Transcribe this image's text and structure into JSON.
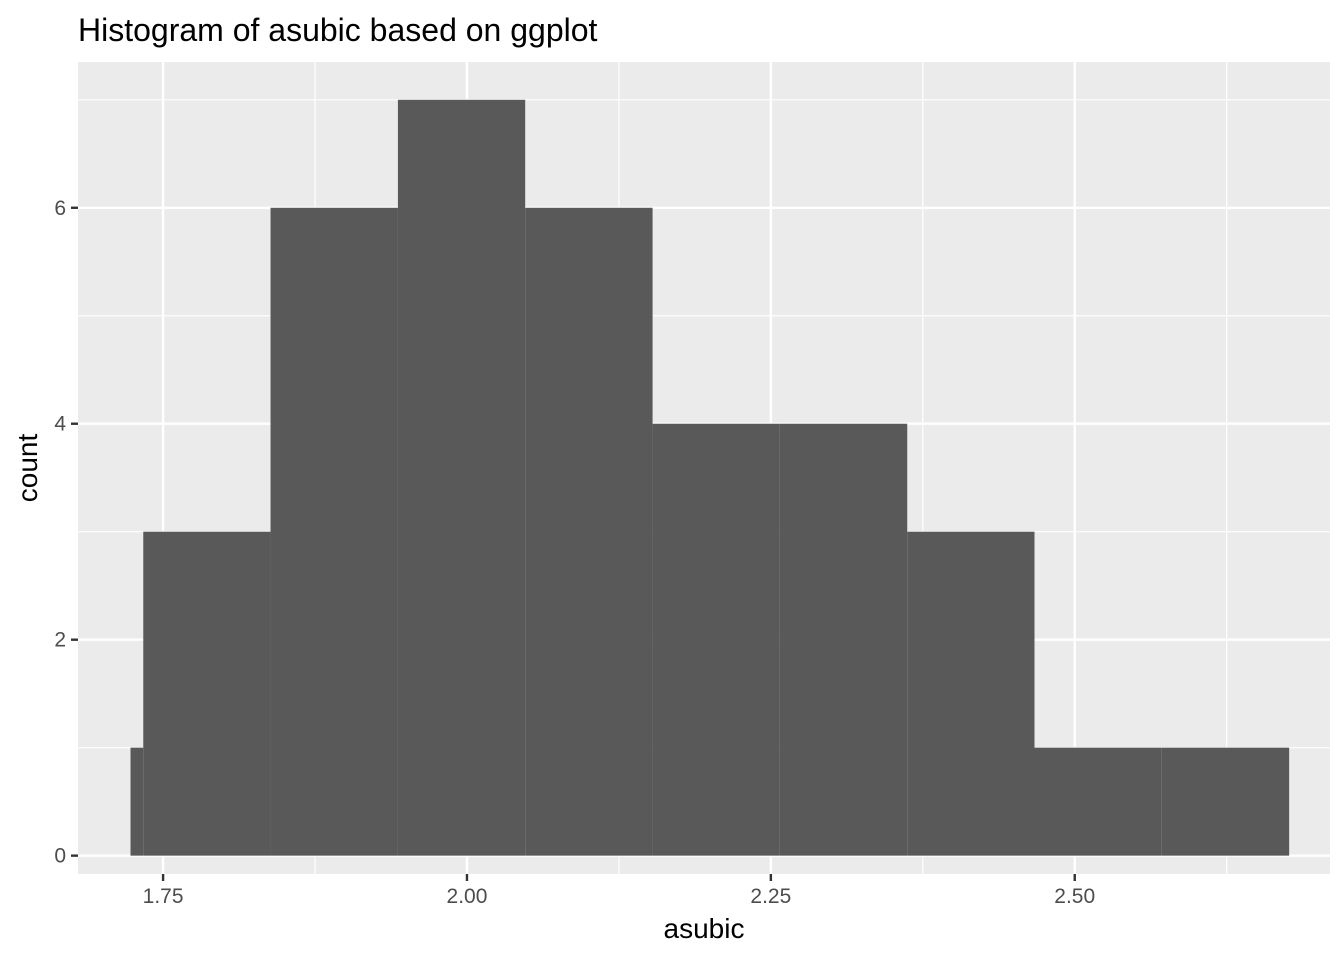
{
  "chart_data": {
    "type": "bar",
    "subtype": "histogram",
    "title": "Histogram of asubic based on ggplot",
    "xlabel": "asubic",
    "ylabel": "count",
    "xlim": [
      1.68,
      2.71
    ],
    "ylim": [
      -0.17,
      7.35
    ],
    "x_ticks": [
      1.75,
      2.0,
      2.25,
      2.5
    ],
    "x_tick_labels": [
      "1.75",
      "2.00",
      "2.25",
      "2.50"
    ],
    "y_ticks": [
      0,
      2,
      4,
      6
    ],
    "y_tick_labels": [
      "0",
      "2",
      "4",
      "6"
    ],
    "bins": [
      {
        "x0": 1.7232,
        "x1": 1.7337,
        "count": 1
      },
      {
        "x0": 1.7337,
        "x1": 1.8384,
        "count": 3
      },
      {
        "x0": 1.8384,
        "x1": 1.9432,
        "count": 6
      },
      {
        "x0": 1.9432,
        "x1": 2.0479,
        "count": 7
      },
      {
        "x0": 2.0479,
        "x1": 2.1527,
        "count": 6
      },
      {
        "x0": 2.1527,
        "x1": 2.2574,
        "count": 4
      },
      {
        "x0": 2.2574,
        "x1": 2.3622,
        "count": 4
      },
      {
        "x0": 2.3622,
        "x1": 2.4669,
        "count": 3
      },
      {
        "x0": 2.4669,
        "x1": 2.5716,
        "count": 1
      },
      {
        "x0": 2.5716,
        "x1": 2.6764,
        "count": 1
      }
    ],
    "grid": true,
    "bar_color": "#595959",
    "panel_background": "#ebebeb",
    "grid_color": "#ffffff"
  }
}
